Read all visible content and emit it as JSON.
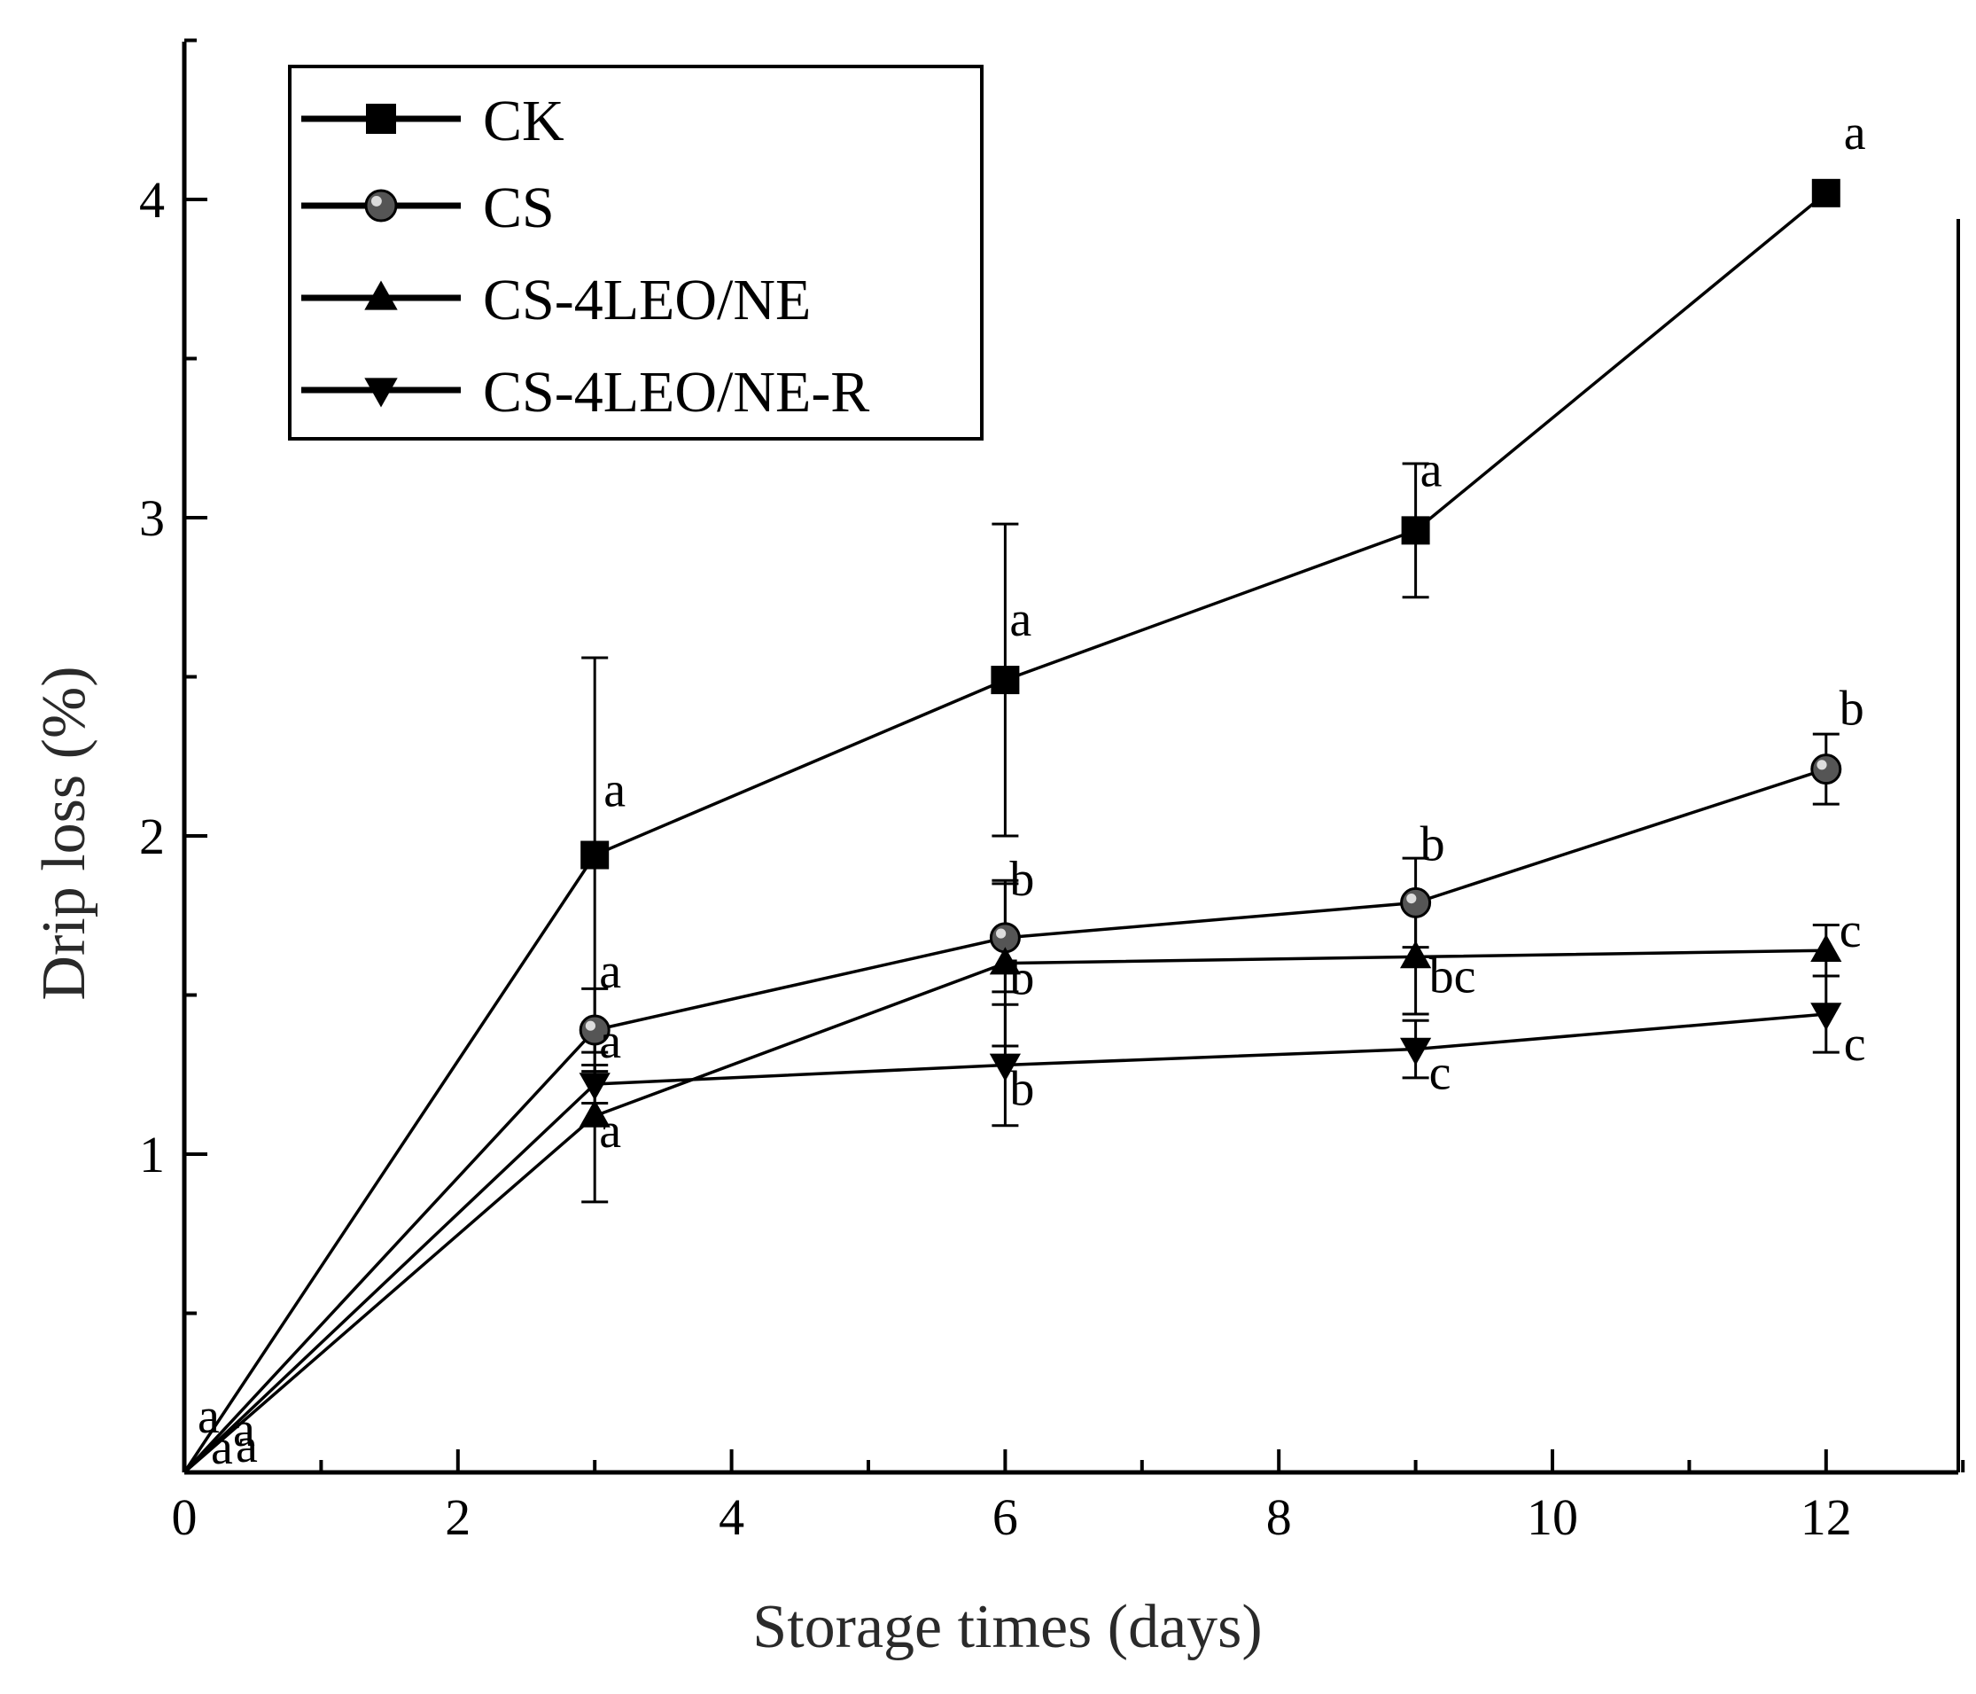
{
  "chart_data": {
    "type": "line",
    "title": "",
    "xlabel": "Storage times (days)",
    "ylabel": "Drip loss (%)",
    "xlim": [
      0,
      13
    ],
    "ylim": [
      0,
      4.5
    ],
    "x_ticks": [
      0,
      2,
      4,
      6,
      8,
      10,
      12
    ],
    "y_ticks": [
      1,
      2,
      3,
      4
    ],
    "x_tick_labels": [
      "0",
      "2",
      "4",
      "6",
      "8",
      "10",
      "12"
    ],
    "y_tick_labels": [
      "1",
      "2",
      "3",
      "4"
    ],
    "legend": {
      "position": "top-left"
    },
    "series": [
      {
        "name": "CK",
        "marker": "square",
        "x": [
          0,
          3,
          6,
          9,
          12
        ],
        "values": [
          0,
          1.94,
          2.49,
          2.96,
          4.02
        ],
        "errors": [
          0,
          0.62,
          0.49,
          0.21,
          0
        ],
        "letters": [
          "a",
          "a",
          "a",
          "a",
          "a"
        ]
      },
      {
        "name": "CS",
        "marker": "circle",
        "x": [
          0,
          3,
          6,
          9,
          12
        ],
        "values": [
          0,
          1.39,
          1.68,
          1.79,
          2.21
        ],
        "errors": [
          0,
          0.13,
          0.17,
          0.14,
          0.11
        ],
        "letters": [
          "a",
          "a",
          "b",
          "b",
          "b"
        ]
      },
      {
        "name": "CS-4LEO/NE",
        "marker": "triangle-up",
        "x": [
          0,
          3,
          6,
          9,
          12
        ],
        "values": [
          0,
          1.12,
          1.6,
          1.62,
          1.64
        ],
        "errors": [
          0,
          0.27,
          0.26,
          0.18,
          0.08
        ],
        "letters": [
          "a",
          "a",
          "b",
          "bc",
          "c"
        ]
      },
      {
        "name": "CS-4LEO/NE-R",
        "marker": "triangle-down",
        "x": [
          0,
          3,
          6,
          9,
          12
        ],
        "values": [
          0,
          1.22,
          1.28,
          1.33,
          1.44
        ],
        "errors": [
          0,
          0.06,
          0.19,
          0.09,
          0.12
        ],
        "letters": [
          "a",
          "a",
          "b",
          "c",
          "c"
        ]
      }
    ]
  }
}
